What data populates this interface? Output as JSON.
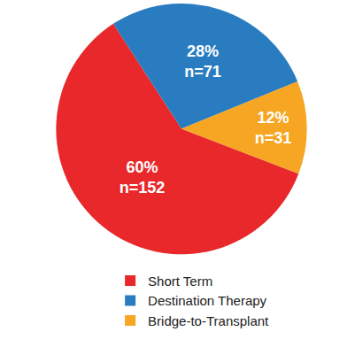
{
  "chart_data": {
    "type": "pie",
    "categories": [
      "Short Term",
      "Destination Therapy",
      "Bridge-to-Transplant"
    ],
    "values": [
      60,
      28,
      12
    ],
    "value_labels": [
      "60%",
      "28%",
      "12%"
    ],
    "count_labels": [
      "n=152",
      "n=71",
      "n=31"
    ],
    "colors": [
      "#e8282b",
      "#2a7cc0",
      "#f6a623"
    ],
    "data_labels": true,
    "legend": "bottom"
  }
}
